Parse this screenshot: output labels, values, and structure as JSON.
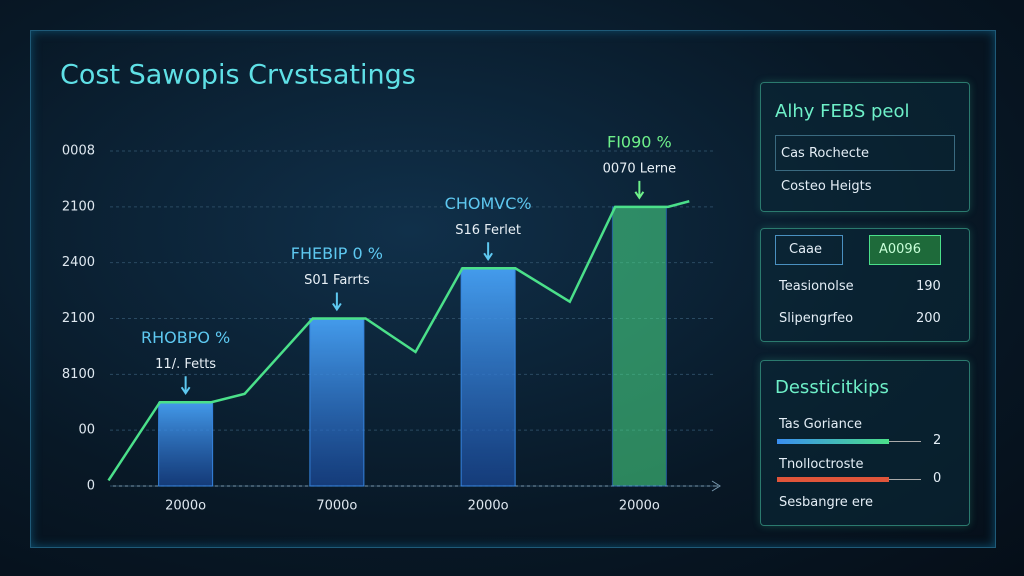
{
  "chart_data": {
    "type": "bar",
    "title": "Cost Sawopis Crvstsatings",
    "categories": [
      "2000o",
      "7000o",
      "2000o",
      "2000o"
    ],
    "ylim": [
      0,
      6
    ],
    "yticks": [
      {
        "value": 0,
        "label": "0"
      },
      {
        "value": 1,
        "label": "00"
      },
      {
        "value": 2,
        "label": "8100"
      },
      {
        "value": 3,
        "label": "2100"
      },
      {
        "value": 4,
        "label": "2400"
      },
      {
        "value": 5,
        "label": "2100"
      },
      {
        "value": 6,
        "label": "0008"
      }
    ],
    "grid": true,
    "series": [
      {
        "color": "#3a8ef0",
        "values": [
          1.5,
          3,
          3.9,
          5
        ]
      },
      {
        "type": "line",
        "color": "#4be08a",
        "x": [
          -0.51,
          -0.17,
          0.17,
          0.39,
          0.84,
          1.19,
          1.52,
          1.83,
          2.18,
          2.54,
          2.84,
          3.19,
          3.33
        ],
        "values": [
          0.1,
          1.5,
          1.5,
          1.65,
          3,
          3,
          2.4,
          3.9,
          3.9,
          3.3,
          5,
          5,
          5.1
        ]
      }
    ],
    "annotations": [
      {
        "title": "RHOBPO %",
        "subtitle": "11/. Fetts"
      },
      {
        "title": "FHEBIP 0 %",
        "subtitle": "S01 Farrts"
      },
      {
        "title": "CHOMVC%",
        "subtitle": "S16 Ferlet"
      },
      {
        "title": "FI090 %",
        "subtitle": "0070 Lerne"
      }
    ]
  },
  "panels": [
    {
      "title": "Alhy FEBS peol",
      "rows": [
        "Cas Rochecte",
        "Costeo Heigts"
      ]
    },
    {
      "button": "Caae",
      "badge": "A0096",
      "rows": [
        [
          "Teasionolse",
          "190"
        ],
        [
          "Slipengrfeo",
          "200"
        ]
      ]
    },
    {
      "title": "Dessticitkips",
      "rows": [
        [
          "Tas Goriance",
          "2"
        ],
        [
          "Tnolloctroste",
          "0"
        ],
        [
          "Sesbangre ere"
        ]
      ]
    }
  ]
}
